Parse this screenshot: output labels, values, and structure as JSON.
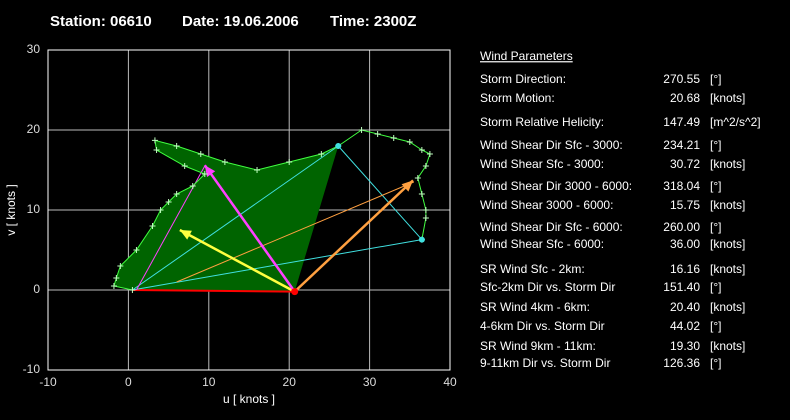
{
  "chart_data": {
    "type": "hodograph",
    "title": [
      "Station: 06610",
      "Date: 19.06.2006",
      "Time: 2300Z"
    ],
    "xlabel": "u  [ knots ]",
    "ylabel": "v  [ knots ]",
    "xlim": [
      -10,
      40
    ],
    "ylim": [
      -10,
      30
    ],
    "xticks": [
      -10,
      0,
      10,
      20,
      30,
      40
    ],
    "yticks": [
      -10,
      0,
      10,
      20,
      30
    ],
    "grid": true,
    "trace": {
      "color": "#40ff40",
      "u": [
        0.5,
        -1.8,
        -1.5,
        -1,
        1,
        3,
        4,
        5,
        6,
        8,
        9.5,
        7,
        3.5,
        3.3,
        6,
        9,
        12,
        16,
        20,
        24,
        26.1,
        29,
        31,
        33,
        35,
        36.5,
        37.5,
        37,
        36,
        36.5,
        37,
        37,
        36.5
      ],
      "v": [
        0,
        0.5,
        1.5,
        3,
        5,
        8,
        10,
        11,
        12,
        13,
        14.5,
        15.5,
        17.5,
        18.7,
        18,
        17,
        16,
        15,
        16,
        17,
        18,
        20,
        19.5,
        19,
        18.5,
        17.5,
        17,
        15.5,
        14,
        12,
        10,
        9,
        6.3
      ]
    },
    "shade_color": "#006400",
    "storm_motion": {
      "u": 20.68,
      "v": -0.2,
      "color": "#ff0000"
    },
    "segments": [
      {
        "color": "#ff0000",
        "u": [
          0.5,
          20.68
        ],
        "v": [
          0,
          -0.2
        ],
        "arrow": false
      },
      {
        "color": "#40e0e0",
        "u": [
          0.5,
          26.1
        ],
        "v": [
          0,
          18
        ],
        "arrow": false
      },
      {
        "color": "#40e0e0",
        "u": [
          26.1,
          36.5
        ],
        "v": [
          18,
          6.3
        ],
        "arrow": false
      },
      {
        "color": "#40e0e0",
        "u": [
          0.5,
          36.5
        ],
        "v": [
          0,
          6.3
        ],
        "arrow": false
      },
      {
        "color": "#ffa040",
        "u": [
          6,
          35.5
        ],
        "v": [
          1,
          13.5
        ],
        "arrow": false
      },
      {
        "color": "#ff40ff",
        "u": [
          1,
          9.5
        ],
        "v": [
          0,
          15.5
        ],
        "arrow": false
      },
      {
        "color": "#ffff40",
        "u": [
          20.68,
          6.4
        ],
        "v": [
          -0.2,
          7.5
        ],
        "arrow": true
      },
      {
        "color": "#ffa040",
        "u": [
          20.68,
          35.4
        ],
        "v": [
          -0.2,
          13.7
        ],
        "arrow": true
      },
      {
        "color": "#ff40ff",
        "u": [
          20.68,
          9.5
        ],
        "v": [
          -0.2,
          15.6
        ],
        "arrow": true
      }
    ],
    "endpoints": [
      {
        "u": 26.1,
        "v": 18,
        "color": "#40e0e0"
      },
      {
        "u": 36.5,
        "v": 6.3,
        "color": "#40e0e0"
      }
    ]
  },
  "panel": {
    "title": "Wind Parameters",
    "rows": [
      {
        "label": "Storm Direction:",
        "value": "270.55",
        "unit": "[°]",
        "color": "#ff2020"
      },
      {
        "label": "Storm Motion:",
        "value": "20.68",
        "unit": "[knots]",
        "color": "#ff2020"
      },
      {
        "label": "Storm Relative Helicity:",
        "value": "147.49",
        "unit": "[m^2/s^2]",
        "color": "#40ff40"
      },
      {
        "label": "Wind Shear Dir Sfc - 3000:",
        "value": "234.21",
        "unit": "[°]",
        "color": "#40e0e0"
      },
      {
        "label": "Wind Shear Sfc - 3000:",
        "value": "30.72",
        "unit": "[knots]",
        "color": "#40e0e0"
      },
      {
        "label": "Wind Shear Dir 3000 - 6000:",
        "value": "318.04",
        "unit": "[°]",
        "color": "#40e0e0"
      },
      {
        "label": "Wind Shear 3000 - 6000:",
        "value": "15.75",
        "unit": "[knots]",
        "color": "#40e0e0"
      },
      {
        "label": "Wind Shear Dir Sfc - 6000:",
        "value": "260.00",
        "unit": "[°]",
        "color": "#40e0e0"
      },
      {
        "label": "Wind Shear Sfc - 6000:",
        "value": "36.00",
        "unit": "[knots]",
        "color": "#40e0e0"
      },
      {
        "label": "SR Wind Sfc - 2km:",
        "value": "16.16",
        "unit": "[knots]",
        "color": "#ffff40"
      },
      {
        "label": "Sfc-2km Dir vs. Storm Dir",
        "value": "151.40",
        "unit": "[°]",
        "color": "#ffff40"
      },
      {
        "label": "SR Wind 4km - 6km:",
        "value": "20.40",
        "unit": "[knots]",
        "color": "#ffa040"
      },
      {
        "label": "4-6km Dir vs. Storm Dir",
        "value": "44.02",
        "unit": "[°]",
        "color": "#ffa040"
      },
      {
        "label": "SR Wind 9km - 11km:",
        "value": "19.30",
        "unit": "[knots]",
        "color": "#ff40ff"
      },
      {
        "label": "9-11km Dir vs. Storm Dir",
        "value": "126.36",
        "unit": "[°]",
        "color": "#ff40ff"
      }
    ]
  }
}
